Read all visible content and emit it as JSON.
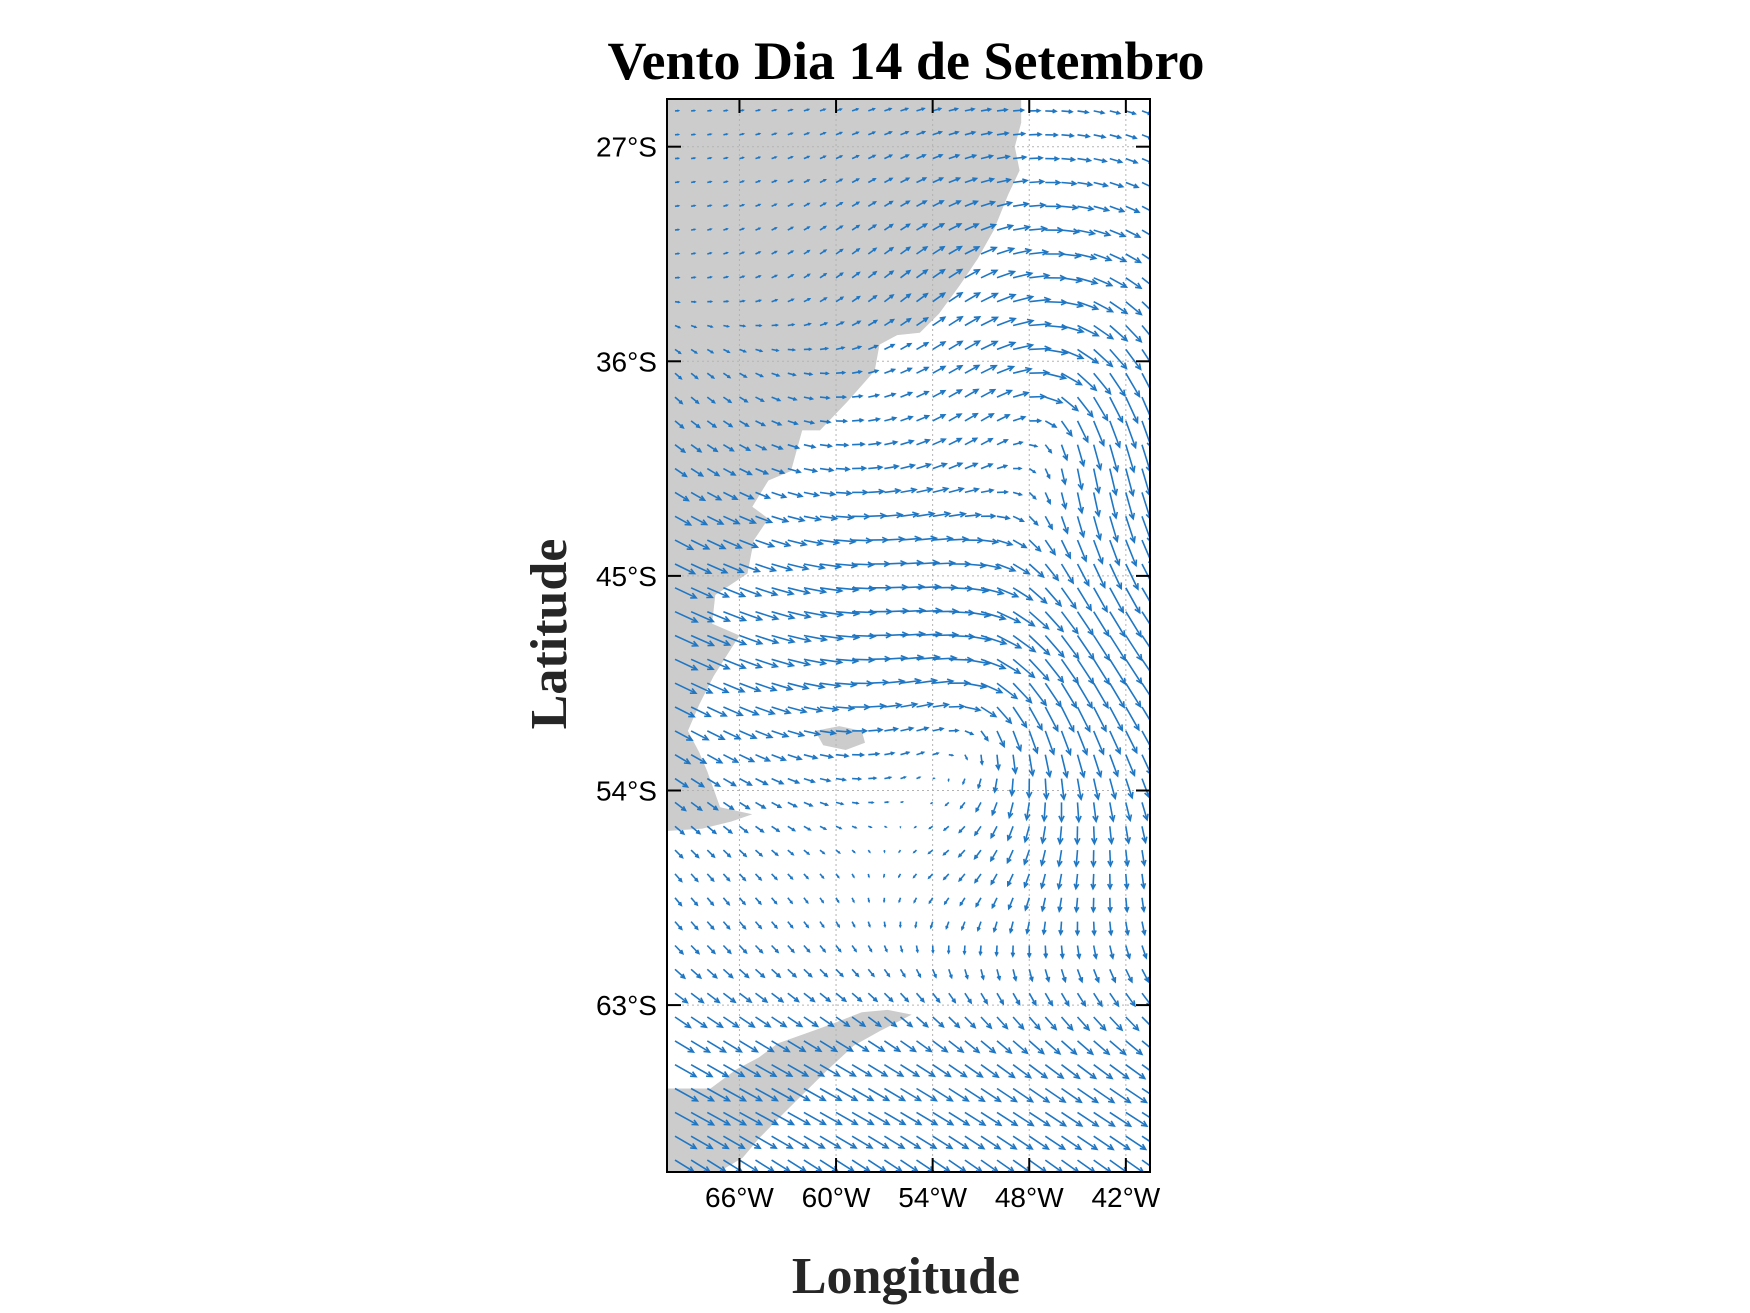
{
  "title": "Vento Dia 14 de Setembro",
  "xlabel": "Longitude",
  "ylabel": "Latitude",
  "colors": {
    "vector": "#1f77c4",
    "land": "#cccccc",
    "grid": "#b3b3b3",
    "frame": "#000000"
  },
  "axes": {
    "lon_range": [
      -70.5,
      -40.5
    ],
    "lat_range": [
      -25,
      -70
    ],
    "lat_ticks": [
      {
        "value": -27,
        "label": "27°S"
      },
      {
        "value": -36,
        "label": "36°S"
      },
      {
        "value": -45,
        "label": "45°S"
      },
      {
        "value": -54,
        "label": "54°S"
      },
      {
        "value": -63,
        "label": "63°S"
      }
    ],
    "lon_ticks": [
      {
        "value": -66,
        "label": "66°W"
      },
      {
        "value": -60,
        "label": "60°W"
      },
      {
        "value": -54,
        "label": "54°W"
      },
      {
        "value": -48,
        "label": "48°W"
      },
      {
        "value": -42,
        "label": "42°W"
      }
    ],
    "grid": "dotted"
  },
  "map_features": {
    "land_polygons": [
      {
        "name": "south-america",
        "points": [
          [
            -70.5,
            -25
          ],
          [
            -48.5,
            -25
          ],
          [
            -48.5,
            -26
          ],
          [
            -48.9,
            -27
          ],
          [
            -48.6,
            -28
          ],
          [
            -49.3,
            -29
          ],
          [
            -50.2,
            -30.5
          ],
          [
            -51.2,
            -31.7
          ],
          [
            -52.3,
            -32.8
          ],
          [
            -53.6,
            -34
          ],
          [
            -54.8,
            -34.8
          ],
          [
            -56.2,
            -34.9
          ],
          [
            -57.3,
            -35.3
          ],
          [
            -57.6,
            -36.4
          ],
          [
            -59.3,
            -37.7
          ],
          [
            -61,
            -38.9
          ],
          [
            -62.1,
            -38.9
          ],
          [
            -62.8,
            -40.6
          ],
          [
            -64.2,
            -41
          ],
          [
            -65.2,
            -42.1
          ],
          [
            -64.2,
            -42.6
          ],
          [
            -65.1,
            -43.5
          ],
          [
            -65.5,
            -44.9
          ],
          [
            -67.5,
            -45.8
          ],
          [
            -67.7,
            -47
          ],
          [
            -66,
            -47.5
          ],
          [
            -67.6,
            -49.2
          ],
          [
            -68.5,
            -50.4
          ],
          [
            -69.2,
            -51.5
          ],
          [
            -68.5,
            -52.4
          ],
          [
            -68,
            -53.2
          ],
          [
            -67.2,
            -54.7
          ],
          [
            -65.2,
            -55
          ],
          [
            -66.5,
            -55.3
          ],
          [
            -68.3,
            -55.6
          ],
          [
            -70.5,
            -55.7
          ]
        ]
      },
      {
        "name": "falkland-islands",
        "points": [
          [
            -61.3,
            -51.5
          ],
          [
            -59.8,
            -51.3
          ],
          [
            -58.4,
            -51.5
          ],
          [
            -58.2,
            -52
          ],
          [
            -59.4,
            -52.3
          ],
          [
            -60.8,
            -52.1
          ]
        ]
      },
      {
        "name": "antarctic-peninsula",
        "points": [
          [
            -70.5,
            -68.5
          ],
          [
            -70.5,
            -66.5
          ],
          [
            -67.8,
            -66.5
          ],
          [
            -66.2,
            -65.7
          ],
          [
            -64.8,
            -65.2
          ],
          [
            -63.6,
            -64.6
          ],
          [
            -61.5,
            -64.1
          ],
          [
            -60.3,
            -63.8
          ],
          [
            -58.4,
            -63.3
          ],
          [
            -56.8,
            -63.2
          ],
          [
            -55.3,
            -63.4
          ],
          [
            -57.3,
            -64.1
          ],
          [
            -58.9,
            -64.7
          ],
          [
            -60.5,
            -65.7
          ],
          [
            -61.7,
            -66.5
          ],
          [
            -63.5,
            -67.7
          ],
          [
            -64.8,
            -68.6
          ],
          [
            -65.8,
            -69.4
          ],
          [
            -67.3,
            -70
          ],
          [
            -70.5,
            -70
          ]
        ]
      }
    ],
    "wind_field": {
      "grid_spacing_deg": 1.0,
      "vector_scale": 0.75,
      "components": [
        {
          "type": "westerly",
          "center": [
            -52,
            -47.5
          ],
          "lat_width": 7,
          "speed": 3.3
        },
        {
          "type": "westerly",
          "center": [
            -48,
            -67
          ],
          "lat_width": 5,
          "speed": 3.4
        },
        {
          "type": "cyclone",
          "center": [
            -46.5,
            -38.3
          ],
          "radius": 4.6,
          "speed": 2.9
        },
        {
          "type": "cyclone",
          "center": [
            -51,
            -50.8
          ],
          "radius": 4.2,
          "speed": 2.2
        },
        {
          "type": "uniform",
          "u": 0.8,
          "v": -1.5
        },
        {
          "type": "uniform-north",
          "lat_min": -35,
          "u": -0.3,
          "v": 1.4
        }
      ]
    }
  }
}
